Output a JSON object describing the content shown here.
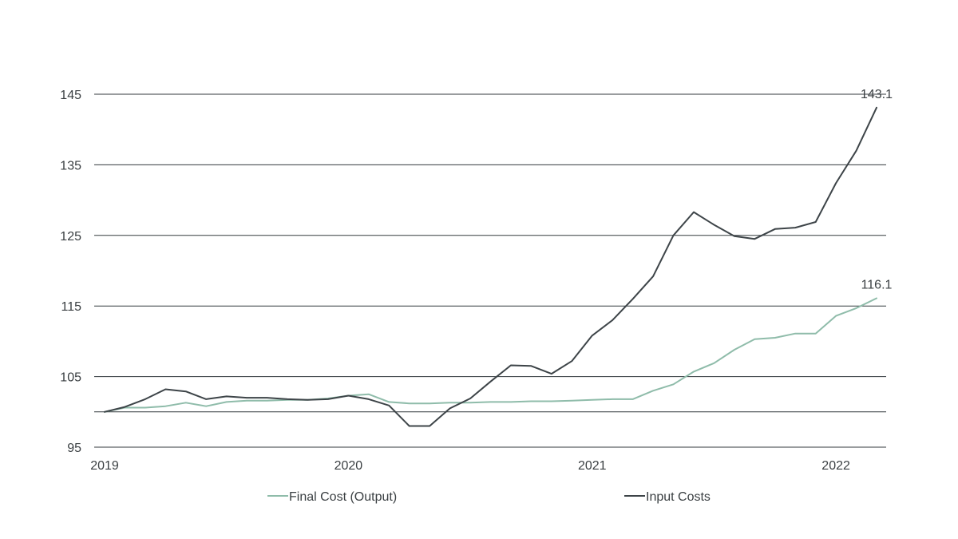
{
  "chart_data": {
    "type": "line",
    "x": [
      "2019-01",
      "2019-02",
      "2019-03",
      "2019-04",
      "2019-05",
      "2019-06",
      "2019-07",
      "2019-08",
      "2019-09",
      "2019-10",
      "2019-11",
      "2019-12",
      "2020-01",
      "2020-02",
      "2020-03",
      "2020-04",
      "2020-05",
      "2020-06",
      "2020-07",
      "2020-08",
      "2020-09",
      "2020-10",
      "2020-11",
      "2020-12",
      "2021-01",
      "2021-02",
      "2021-03",
      "2021-04",
      "2021-05",
      "2021-06",
      "2021-07",
      "2021-08",
      "2021-09",
      "2021-10",
      "2021-11",
      "2021-12",
      "2022-01",
      "2022-02",
      "2022-03"
    ],
    "series": [
      {
        "name": "Final Cost (Output)",
        "color": "#8fbcaa",
        "values": [
          100.0,
          100.6,
          100.6,
          100.8,
          101.3,
          100.8,
          101.4,
          101.6,
          101.6,
          101.7,
          101.7,
          101.9,
          102.3,
          102.5,
          101.4,
          101.2,
          101.2,
          101.3,
          101.3,
          101.4,
          101.4,
          101.5,
          101.5,
          101.6,
          101.7,
          101.8,
          101.8,
          103.0,
          103.9,
          105.7,
          106.9,
          108.8,
          110.3,
          110.5,
          111.1,
          111.1,
          113.6,
          114.7,
          116.1
        ]
      },
      {
        "name": "Input Costs",
        "color": "#3d4448",
        "values": [
          100.0,
          100.7,
          101.8,
          103.2,
          102.9,
          101.8,
          102.2,
          102.0,
          102.0,
          101.8,
          101.7,
          101.8,
          102.3,
          101.8,
          100.9,
          98.0,
          98.0,
          100.5,
          101.9,
          104.3,
          106.6,
          106.5,
          105.4,
          107.2,
          110.8,
          113.0,
          116.0,
          119.2,
          125.0,
          128.3,
          126.5,
          124.9,
          124.5,
          125.9,
          126.1,
          126.9,
          132.4,
          137.0,
          143.1
        ]
      }
    ],
    "x_ticks": [
      {
        "date": "2019-01",
        "label": "2019"
      },
      {
        "date": "2020-01",
        "label": "2020"
      },
      {
        "date": "2021-01",
        "label": "2021"
      },
      {
        "date": "2022-01",
        "label": "2022"
      }
    ],
    "y_ticks": [
      95,
      105,
      115,
      125,
      135,
      145
    ],
    "ylim": [
      95,
      145
    ],
    "gridlines": [
      95,
      100,
      105,
      115,
      125,
      135,
      145
    ],
    "grid": true,
    "title": "",
    "xlabel": "",
    "ylabel": "",
    "annotations": [
      {
        "series": "Input Costs",
        "label": "143.1"
      },
      {
        "series": "Final Cost (Output)",
        "label": "116.1"
      }
    ],
    "legend": {
      "placement": "bottom",
      "entries": [
        {
          "label": "Final Cost (Output)",
          "color": "#8fbcaa"
        },
        {
          "label": "Input Costs",
          "color": "#3d4448"
        }
      ]
    }
  }
}
